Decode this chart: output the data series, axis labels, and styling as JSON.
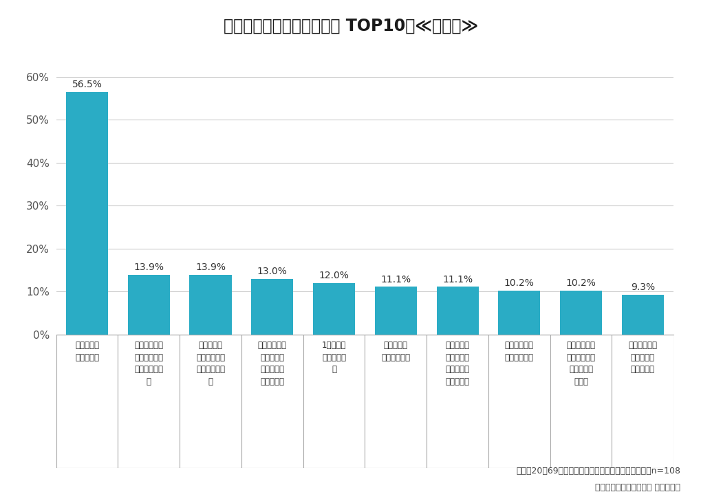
{
  "title": "喫煙する銘柄をかえた理由 TOP10　≪参考値≫",
  "title_bg_color": "#F5D033",
  "bar_color": "#2AACC5",
  "values": [
    56.5,
    13.9,
    13.9,
    13.0,
    12.0,
    11.1,
    11.1,
    10.2,
    10.2,
    9.3
  ],
  "labels": [
    "価格が高く\nなったから",
    "もらいたばこ\nをした時にお\nいしかったか\nら",
    "他社のトラ\nイアルサンプ\nルを貰ったか\nら",
    "タール・ニコ\nチンの低い\nものにした\nかったから",
    "1本で長く\n吸いたいか\nら",
    "味の好みが\n変わったから",
    "健康への害\nの少ないも\nのに換えた\nかったから",
    "ニオイを抑え\nたかったから",
    "前のタバコの\n味・ニオイに\n不満があっ\nたから",
    "他のタバコの\n方がおいし\nかったから"
  ],
  "ylim": [
    0,
    65
  ],
  "yticks": [
    0,
    10,
    20,
    30,
    40,
    50,
    60
  ],
  "ytick_labels": [
    "0%",
    "10%",
    "20%",
    "30%",
    "40%",
    "50%",
    "60%"
  ],
  "footnote1": "全国　20～69歳　直近１年間で喫煙銘柄をかえた人　n=108",
  "footnote2": "スパコロ「利用実態調査 たばこ編」",
  "bg_color": "#FFFFFF",
  "grid_color": "#CCCCCC",
  "border_color": "#AAAAAA"
}
